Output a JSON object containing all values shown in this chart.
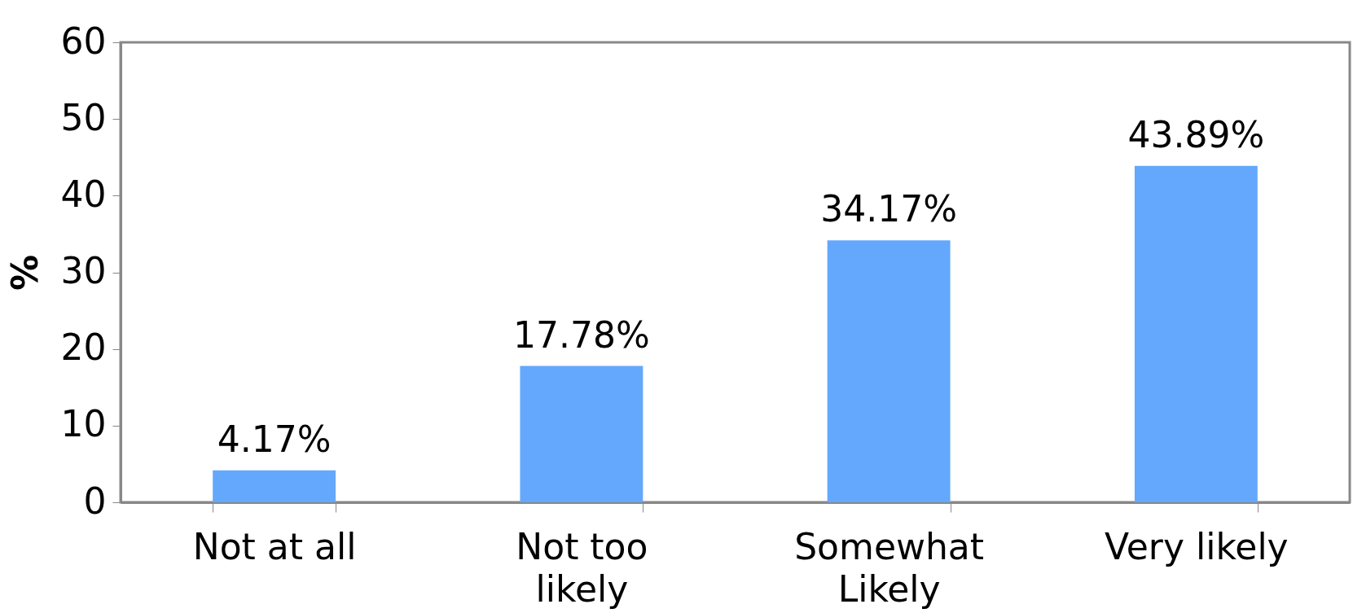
{
  "chart_data": {
    "type": "bar",
    "ylabel": "%",
    "categories": [
      "Not at all",
      "Not too likely",
      "Somewhat Likely",
      "Very likely"
    ],
    "values": [
      4.17,
      17.78,
      34.17,
      43.89
    ],
    "value_labels": [
      "4.17%",
      "17.78%",
      "34.17%",
      "43.89%"
    ],
    "color": "#63a8fc",
    "ylim": [
      0,
      60
    ],
    "yticks": [
      0,
      10,
      20,
      30,
      40,
      50,
      60
    ],
    "grid": false
  }
}
